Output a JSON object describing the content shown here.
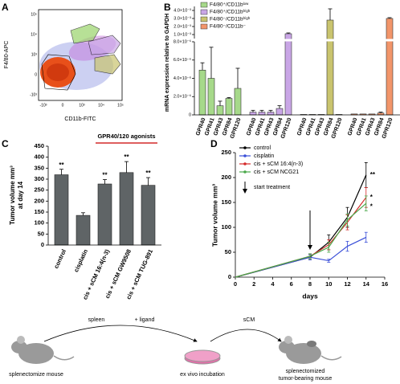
{
  "panel_labels": [
    "A",
    "B",
    "C",
    "D"
  ],
  "flow_plot": {
    "ylabel": "F4/80-APC",
    "xlabel": "CD11b-FITC",
    "yticks": [
      "10⁵",
      "10⁴",
      "10³",
      "0",
      "-10³"
    ],
    "xticks": [
      "-10³",
      "0",
      "10³",
      "10⁴",
      "10⁵"
    ]
  },
  "chart_data": [
    {
      "type": "bar",
      "ylabel": "mRNA expression relative to GAPDH",
      "categories": [
        "GPR40",
        "GPR41",
        "GPR43",
        "GPR84",
        "GPR120"
      ],
      "series": [
        {
          "name": "F4/80⁺/CD11bˡᵒʷ",
          "color": "#a6d98a",
          "values": [
            4.9e-06,
            4e-06,
            1e-06,
            1.8e-06,
            2.9e-06
          ],
          "errors": [
            8e-07,
            3.4e-06,
            5e-07,
            1e-07,
            2.2e-06
          ]
        },
        {
          "name": "F4/80⁺/CD11bʰⁱᵍʰ",
          "color": "#c9a6e6",
          "values": [
            3e-07,
            3e-07,
            3e-07,
            7e-07,
            0.0011
          ],
          "errors": [
            2e-07,
            2e-07,
            2e-07,
            3e-07,
            0.0001
          ]
        },
        {
          "name": "F4/80⁻/CD11bʰⁱᵍʰ",
          "color": "#c9c46e",
          "values": [
            5e-08,
            5e-08,
            5e-08,
            0.0028,
            5e-08
          ],
          "errors": [
            null,
            null,
            null,
            0.0014,
            null
          ]
        },
        {
          "name": "F4/80⁻/CD11b⁻",
          "color": "#f2956a",
          "values": [
            1e-07,
            1e-07,
            1e-07,
            2e-07,
            0.003
          ],
          "errors": [
            null,
            null,
            null,
            1e-07,
            0.0001
          ]
        }
      ],
      "ylim": [
        0,
        0.0045
      ],
      "ybreak": [
        8e-06,
        0.0005
      ],
      "yticks": [
        0,
        {
          "value": 2e-06,
          "label": "2.0×10⁻⁶"
        },
        {
          "value": 4e-06,
          "label": "4.0×10⁻⁶"
        },
        {
          "value": 6e-06,
          "label": "6.0×10⁻⁶"
        },
        {
          "value": 8e-06,
          "label": "8.0×10⁻⁶"
        },
        {
          "value": 0.001,
          "label": "1.0×10⁻³"
        },
        {
          "value": 0.002,
          "label": "2.0×10⁻³"
        },
        {
          "value": 0.003,
          "label": "3.0×10⁻³"
        },
        {
          "value": 0.004,
          "label": "4.0×10⁻³"
        }
      ],
      "legend": "upper left"
    },
    {
      "type": "bar",
      "ylabel": [
        "Tumor volume mm³",
        "at day 14"
      ],
      "categories": [
        "control",
        "cisplatin",
        "cis + sCM 16:4(n-3)",
        "cis + sCM GW9508",
        "cis + sCM TUG-891"
      ],
      "values": [
        320,
        135,
        278,
        330,
        272
      ],
      "errors": [
        25,
        12,
        20,
        50,
        35
      ],
      "significance": [
        "**",
        null,
        "**",
        "**",
        "**"
      ],
      "color": "#5f6466",
      "bracket": {
        "label": "GPR40/120 agonists",
        "color": "#d42a2a"
      },
      "ylim": [
        0,
        450
      ],
      "yticks": [
        0,
        50,
        100,
        150,
        200,
        250,
        300,
        350,
        400,
        450
      ]
    },
    {
      "type": "line",
      "xlabel": "days",
      "ylabel": "Tumor volume mm³",
      "x": [
        0,
        8,
        10,
        12,
        14
      ],
      "series": [
        {
          "name": "control",
          "color": "#000000",
          "values": [
            0,
            40,
            70,
            120,
            205
          ],
          "errors": [
            null,
            5,
            15,
            20,
            25
          ],
          "end_label": "**"
        },
        {
          "name": "cisplatin",
          "color": "#3a4fd8",
          "values": [
            0,
            40,
            33,
            62,
            80
          ],
          "errors": [
            null,
            5,
            3,
            10,
            10
          ]
        },
        {
          "name": "cis + sCM 16:4(n-3)",
          "color": "#d42a2a",
          "values": [
            0,
            42,
            65,
            110,
            160
          ],
          "errors": [
            null,
            5,
            10,
            15,
            20
          ],
          "end_label": "*"
        },
        {
          "name": "cis + sCM NCG21",
          "color": "#4aa84a",
          "values": [
            0,
            42,
            60,
            115,
            148
          ],
          "errors": [
            null,
            5,
            10,
            12,
            15
          ],
          "end_label": "*"
        }
      ],
      "treatment_start": {
        "label": "start treatment",
        "x": 8
      },
      "xlim": [
        0,
        16
      ],
      "xticks": [
        0,
        2,
        4,
        6,
        8,
        10,
        12,
        14,
        16
      ],
      "ylim": [
        0,
        250
      ],
      "yticks": [
        0,
        50,
        100,
        150,
        200,
        250
      ],
      "legend": "upper left"
    }
  ],
  "schematic": {
    "spleen": "spleen",
    "ligand": "+ ligand",
    "scm": "sCM",
    "left_mouse": "splenectomize mouse",
    "dish": "ex vivo incubation",
    "right_mouse": [
      "splenectomized",
      "tumor-bearing mouse"
    ]
  }
}
